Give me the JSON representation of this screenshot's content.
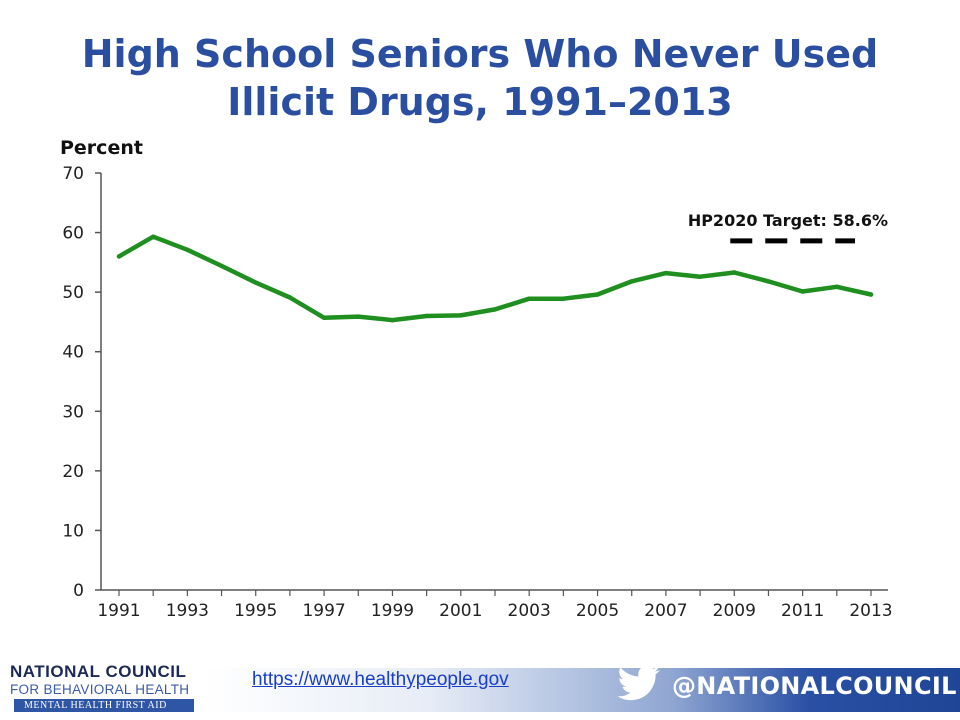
{
  "chart_data": {
    "type": "line",
    "title_lines": [
      "High School Seniors Who Never Used",
      "Illicit Drugs, 1991–2013"
    ],
    "ylabel": "Percent",
    "xlabel": "",
    "ylim": [
      0,
      70
    ],
    "yticks": [
      0,
      10,
      20,
      30,
      40,
      50,
      60,
      70
    ],
    "xlim": [
      1991,
      2013
    ],
    "xticks": [
      1991,
      1993,
      1995,
      1997,
      1999,
      2001,
      2003,
      2005,
      2007,
      2009,
      2011,
      2013
    ],
    "x": [
      1991,
      1992,
      1993,
      1994,
      1995,
      1996,
      1997,
      1998,
      1999,
      2000,
      2001,
      2002,
      2003,
      2004,
      2005,
      2006,
      2007,
      2008,
      2009,
      2010,
      2011,
      2012,
      2013
    ],
    "series": [
      {
        "values": [
          56.0,
          59.3,
          57.1,
          54.4,
          51.6,
          49.1,
          45.7,
          45.9,
          45.3,
          46.0,
          46.1,
          47.1,
          48.9,
          48.9,
          49.6,
          51.8,
          53.2,
          52.6,
          53.3,
          51.8,
          50.1,
          50.9,
          49.6
        ],
        "color": "#1f8f1f"
      }
    ],
    "target": {
      "label": "HP2020 Target: 58.6%",
      "value": 58.6,
      "x_range": [
        2009,
        2013
      ]
    },
    "grid": {
      "x": false,
      "y": false
    }
  },
  "footer": {
    "org_line1": "NATIONAL COUNCIL",
    "org_line2": "FOR BEHAVIORAL HEALTH",
    "org_line3": "MENTAL HEALTH FIRST AID",
    "url": "https://www.healthypeople.gov",
    "handle": "@NATIONALCOUNCIL"
  },
  "colors": {
    "title": "#2b4fa0",
    "line": "#1f8f1f",
    "target": "#000000",
    "brand": "#2a50a5"
  }
}
